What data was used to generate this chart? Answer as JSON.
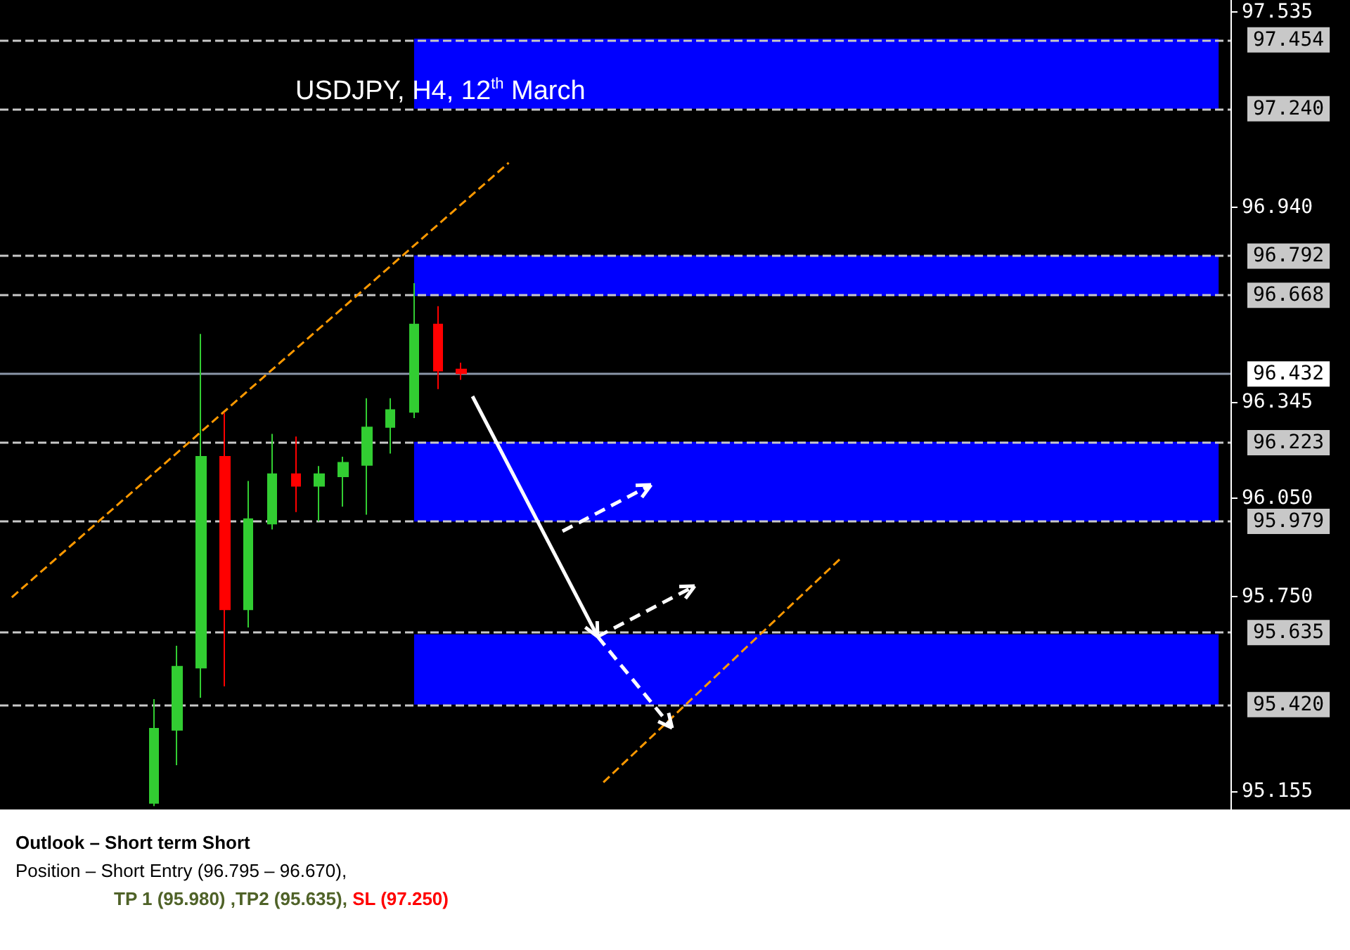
{
  "chart_data": {
    "type": "candlestick",
    "title": "USDJPY, H4, 12$^{th}$ March",
    "categories": [
      null,
      null,
      null,
      null,
      null,
      null,
      null,
      null,
      null,
      null,
      null,
      null,
      null,
      null,
      null,
      null,
      null,
      null,
      null,
      null,
      null,
      null,
      null,
      null,
      null,
      null,
      null,
      null,
      null,
      null,
      null,
      null,
      null,
      null,
      null,
      null,
      null,
      null,
      null,
      null,
      null,
      null,
      null,
      null,
      null,
      null,
      null,
      null,
      null,
      null,
      null,
      null
    ],
    "ohlc": [
      null,
      null,
      null,
      null,
      null,
      null,
      [
        95.12,
        95.437,
        95.11,
        95.347
      ],
      [
        95.343,
        95.6,
        95.235,
        95.536
      ],
      [
        95.533,
        96.552,
        95.441,
        96.177
      ],
      [
        96.177,
        96.311,
        95.476,
        95.711
      ],
      [
        95.711,
        96.103,
        95.656,
        95.987
      ],
      [
        95.973,
        96.247,
        95.955,
        96.124
      ],
      [
        96.124,
        96.239,
        96.008,
        96.088
      ],
      [
        96.088,
        96.149,
        95.98,
        96.124
      ],
      [
        96.117,
        96.177,
        96.025,
        96.159
      ],
      [
        96.152,
        96.356,
        96.0,
        96.267
      ],
      [
        96.268,
        96.356,
        96.187,
        96.32
      ],
      [
        96.314,
        96.707,
        96.295,
        96.581
      ],
      [
        96.581,
        96.637,
        96.384,
        96.44
      ],
      [
        96.444,
        96.464,
        96.412,
        96.432
      ],
      null,
      null,
      null,
      null,
      null,
      null,
      null,
      null,
      null,
      null,
      null,
      null,
      null,
      null,
      null,
      null,
      null,
      null,
      null,
      null,
      null,
      null,
      null,
      null,
      null,
      null,
      null,
      null,
      null,
      null,
      null,
      null
    ],
    "colors": [
      null,
      null,
      null,
      null,
      null,
      null,
      "#32cd32",
      "#32cd32",
      "#32cd32",
      "#ff0000",
      "#32cd32",
      "#32cd32",
      "#ff0000",
      "#32cd32",
      "#32cd32",
      "#32cd32",
      "#32cd32",
      "#32cd32",
      "#ff0000",
      "#ff0000",
      null,
      null,
      null,
      null,
      null,
      null,
      null,
      null,
      null,
      null,
      null,
      null,
      null,
      null,
      null,
      null,
      null,
      null,
      null,
      null,
      null,
      null,
      null,
      null,
      null,
      null,
      null,
      null,
      null,
      null,
      null,
      null
    ],
    "series": [
      {
        "type": "line",
        "color": "#ff9900",
        "line_style": "dashed",
        "values": [
          95.748,
          null,
          null,
          null,
          null,
          null,
          null,
          null,
          null,
          null,
          null,
          null,
          null,
          null,
          null,
          null,
          null,
          null,
          null,
          null,
          null,
          97.075,
          null,
          null,
          null,
          null,
          null,
          null,
          null,
          null,
          null,
          null,
          null,
          null,
          null,
          null,
          null,
          null,
          null,
          null,
          null,
          null,
          null,
          null,
          null,
          null,
          null,
          null,
          null,
          null,
          null,
          null
        ]
      },
      {
        "type": "line",
        "color": "#ff9900",
        "line_style": "dashed",
        "values": [
          null,
          null,
          null,
          null,
          null,
          null,
          null,
          null,
          null,
          null,
          null,
          null,
          null,
          null,
          null,
          null,
          null,
          null,
          null,
          null,
          null,
          null,
          null,
          null,
          null,
          95.183,
          null,
          null,
          null,
          null,
          null,
          null,
          null,
          null,
          null,
          95.865,
          null,
          null,
          null,
          null,
          null,
          null,
          null,
          null,
          null,
          null,
          null,
          null,
          null,
          null,
          null,
          null
        ]
      }
    ],
    "ylim": [
      95.1,
      97.572
    ],
    "yticks": [
      97.535,
      {
        "value": 96.94,
        "label": "96.940"
      },
      96.345,
      {
        "value": 96.05,
        "label": "96.050"
      },
      {
        "value": 95.75,
        "label": "95.750"
      },
      95.155
    ],
    "tick_labels": "y",
    "grid": false,
    "bands": [
      {
        "axis": "y",
        "from": 97.24,
        "to": 97.454,
        "color": "#0000ff"
      },
      {
        "axis": "y",
        "from": 96.668,
        "to": 96.792,
        "color": "#0000ff"
      },
      {
        "axis": "y",
        "from": 95.979,
        "to": 96.223,
        "color": "#0000ff"
      },
      {
        "axis": "y",
        "from": 95.42,
        "to": 95.635,
        "color": "#0000ff"
      }
    ],
    "ref_lines": [
      {
        "axis": "y",
        "value": 97.454,
        "label": "97.454",
        "color": "#c8c8c8",
        "line_style": "dashed"
      },
      {
        "axis": "y",
        "value": 97.24,
        "label": "97.240",
        "color": "#c8c8c8",
        "line_style": "dashed"
      },
      {
        "axis": "y",
        "value": 96.792,
        "label": "96.792",
        "color": "#c8c8c8",
        "line_style": "dashed"
      },
      {
        "axis": "y",
        "value": 96.668,
        "label": "96.668",
        "color": "#c8c8c8",
        "line_style": "dashed"
      },
      {
        "axis": "y",
        "value": 96.432,
        "label": "96.432",
        "color": "#8a96a8",
        "line_style": "solid"
      },
      {
        "axis": "y",
        "value": 96.223,
        "label": "96.223",
        "color": "#c8c8c8",
        "line_style": "dashed"
      },
      {
        "axis": "y",
        "value": 95.979,
        "label": "95.979",
        "color": "#c8c8c8",
        "line_style": "dashed"
      },
      {
        "axis": "y",
        "value": 95.635,
        "label": "95.635",
        "color": "#c8c8c8",
        "line_style": "dashed"
      },
      {
        "axis": "y",
        "value": 95.42,
        "label": "95.420",
        "color": "#c8c8c8",
        "line_style": "dashed"
      }
    ],
    "annotations": [
      "Outlook – Short term Short",
      "Position – Short Entry  (96.795 – 96.670),",
      "TP 1 (95.980) ,TP2 (95.635),",
      "SL (97.250)"
    ]
  }
}
